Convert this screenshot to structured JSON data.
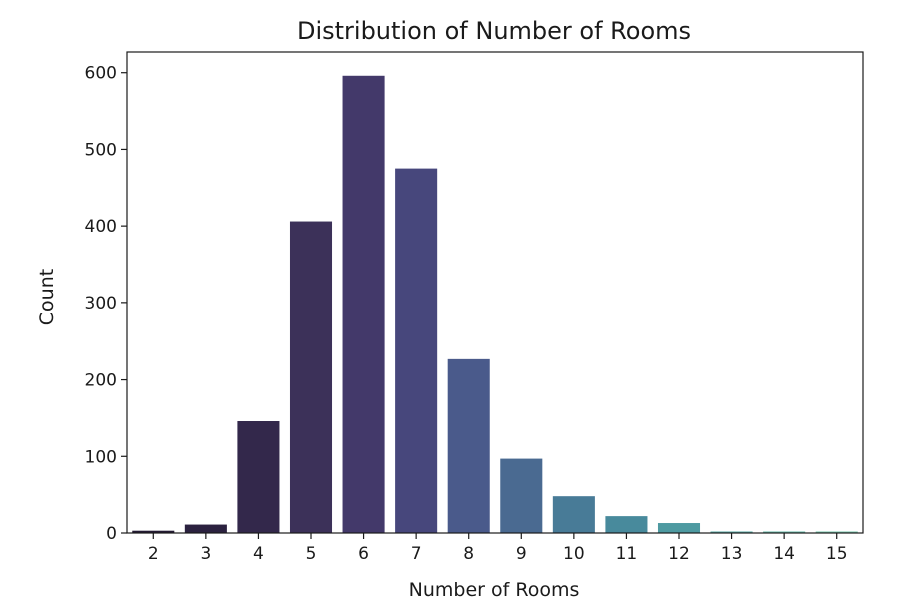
{
  "chart_data": {
    "type": "bar",
    "title": "Distribution of Number of Rooms",
    "xlabel": "Number of Rooms",
    "ylabel": "Count",
    "categories": [
      "2",
      "3",
      "4",
      "5",
      "6",
      "7",
      "8",
      "9",
      "10",
      "11",
      "12",
      "13",
      "14",
      "15"
    ],
    "values": [
      3,
      11,
      146,
      406,
      596,
      475,
      227,
      97,
      48,
      22,
      13,
      2,
      2,
      2
    ],
    "ylim": [
      0,
      627
    ],
    "yticks": [
      0,
      100,
      200,
      300,
      400,
      500,
      600
    ],
    "grid": false,
    "legend": "none",
    "colors": [
      "#231a33",
      "#2b213f",
      "#33284b",
      "#3c3159",
      "#43396a",
      "#47477c",
      "#4a5a8b",
      "#4a6a91",
      "#487b97",
      "#488a9c",
      "#4e9aa1",
      "#5aaaa5",
      "#68b9a9",
      "#7ac6ad"
    ]
  }
}
